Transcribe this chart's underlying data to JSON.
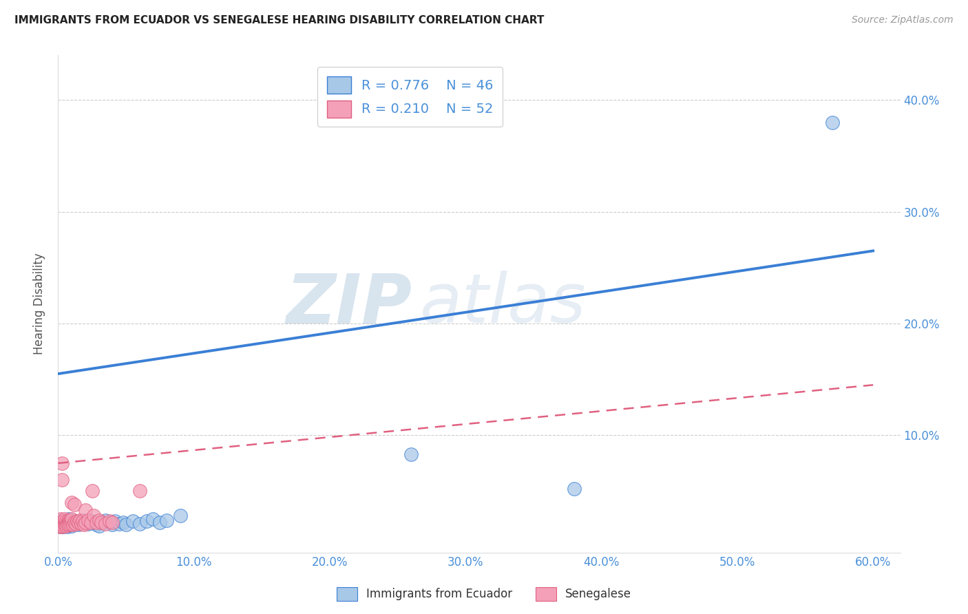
{
  "title": "IMMIGRANTS FROM ECUADOR VS SENEGALESE HEARING DISABILITY CORRELATION CHART",
  "source": "Source: ZipAtlas.com",
  "ylabel": "Hearing Disability",
  "watermark_zip": "ZIP",
  "watermark_atlas": "atlas",
  "xlim": [
    0.0,
    0.62
  ],
  "ylim": [
    -0.005,
    0.44
  ],
  "xtick_labels": [
    "0.0%",
    "10.0%",
    "20.0%",
    "30.0%",
    "40.0%",
    "50.0%",
    "60.0%"
  ],
  "xtick_vals": [
    0.0,
    0.1,
    0.2,
    0.3,
    0.4,
    0.5,
    0.6
  ],
  "ytick_labels": [
    "10.0%",
    "20.0%",
    "30.0%",
    "40.0%"
  ],
  "ytick_vals": [
    0.1,
    0.2,
    0.3,
    0.4
  ],
  "ecuador_R": 0.776,
  "ecuador_N": 46,
  "senegal_R": 0.21,
  "senegal_N": 52,
  "ecuador_color": "#a8c8e8",
  "senegal_color": "#f4a0b8",
  "ecuador_line_color": "#3a7fd5",
  "senegal_line_color": "#e06080",
  "legend_items": [
    "Immigrants from Ecuador",
    "Senegalese"
  ],
  "background_color": "#ffffff",
  "grid_color": "#cccccc",
  "title_color": "#222222",
  "axis_label_color": "#4a90d9",
  "ecuador_line": [
    [
      0.0,
      0.155
    ],
    [
      0.6,
      0.265
    ]
  ],
  "senegal_line": [
    [
      0.0,
      0.075
    ],
    [
      0.6,
      0.145
    ]
  ],
  "ecuador_scatter": [
    [
      0.001,
      0.02
    ],
    [
      0.002,
      0.018
    ],
    [
      0.002,
      0.022
    ],
    [
      0.003,
      0.019
    ],
    [
      0.003,
      0.024
    ],
    [
      0.004,
      0.02
    ],
    [
      0.004,
      0.018
    ],
    [
      0.005,
      0.022
    ],
    [
      0.005,
      0.019
    ],
    [
      0.006,
      0.021
    ],
    [
      0.006,
      0.023
    ],
    [
      0.007,
      0.02
    ],
    [
      0.007,
      0.018
    ],
    [
      0.008,
      0.022
    ],
    [
      0.008,
      0.025
    ],
    [
      0.009,
      0.02
    ],
    [
      0.01,
      0.022
    ],
    [
      0.01,
      0.019
    ],
    [
      0.012,
      0.021
    ],
    [
      0.013,
      0.023
    ],
    [
      0.015,
      0.02
    ],
    [
      0.016,
      0.022
    ],
    [
      0.018,
      0.024
    ],
    [
      0.02,
      0.022
    ],
    [
      0.022,
      0.021
    ],
    [
      0.025,
      0.023
    ],
    [
      0.028,
      0.02
    ],
    [
      0.03,
      0.019
    ],
    [
      0.032,
      0.022
    ],
    [
      0.035,
      0.024
    ],
    [
      0.038,
      0.022
    ],
    [
      0.04,
      0.02
    ],
    [
      0.042,
      0.023
    ],
    [
      0.045,
      0.021
    ],
    [
      0.048,
      0.022
    ],
    [
      0.05,
      0.02
    ],
    [
      0.055,
      0.023
    ],
    [
      0.06,
      0.021
    ],
    [
      0.065,
      0.023
    ],
    [
      0.07,
      0.025
    ],
    [
      0.075,
      0.022
    ],
    [
      0.08,
      0.024
    ],
    [
      0.09,
      0.028
    ],
    [
      0.26,
      0.083
    ],
    [
      0.38,
      0.052
    ],
    [
      0.57,
      0.38
    ]
  ],
  "senegal_scatter": [
    [
      0.001,
      0.02
    ],
    [
      0.001,
      0.018
    ],
    [
      0.002,
      0.022
    ],
    [
      0.002,
      0.019
    ],
    [
      0.002,
      0.025
    ],
    [
      0.003,
      0.02
    ],
    [
      0.003,
      0.022
    ],
    [
      0.003,
      0.018
    ],
    [
      0.003,
      0.06
    ],
    [
      0.004,
      0.021
    ],
    [
      0.004,
      0.023
    ],
    [
      0.004,
      0.019
    ],
    [
      0.005,
      0.022
    ],
    [
      0.005,
      0.02
    ],
    [
      0.005,
      0.025
    ],
    [
      0.006,
      0.021
    ],
    [
      0.006,
      0.023
    ],
    [
      0.006,
      0.019
    ],
    [
      0.007,
      0.022
    ],
    [
      0.007,
      0.02
    ],
    [
      0.008,
      0.024
    ],
    [
      0.008,
      0.022
    ],
    [
      0.008,
      0.02
    ],
    [
      0.009,
      0.023
    ],
    [
      0.009,
      0.021
    ],
    [
      0.01,
      0.022
    ],
    [
      0.01,
      0.025
    ],
    [
      0.01,
      0.04
    ],
    [
      0.011,
      0.02
    ],
    [
      0.012,
      0.022
    ],
    [
      0.012,
      0.038
    ],
    [
      0.013,
      0.021
    ],
    [
      0.014,
      0.023
    ],
    [
      0.015,
      0.022
    ],
    [
      0.016,
      0.024
    ],
    [
      0.017,
      0.021
    ],
    [
      0.018,
      0.023
    ],
    [
      0.019,
      0.02
    ],
    [
      0.02,
      0.022
    ],
    [
      0.02,
      0.033
    ],
    [
      0.022,
      0.024
    ],
    [
      0.024,
      0.022
    ],
    [
      0.025,
      0.05
    ],
    [
      0.026,
      0.028
    ],
    [
      0.028,
      0.022
    ],
    [
      0.03,
      0.024
    ],
    [
      0.032,
      0.022
    ],
    [
      0.035,
      0.021
    ],
    [
      0.038,
      0.023
    ],
    [
      0.04,
      0.022
    ],
    [
      0.06,
      0.05
    ],
    [
      0.003,
      0.075
    ]
  ]
}
